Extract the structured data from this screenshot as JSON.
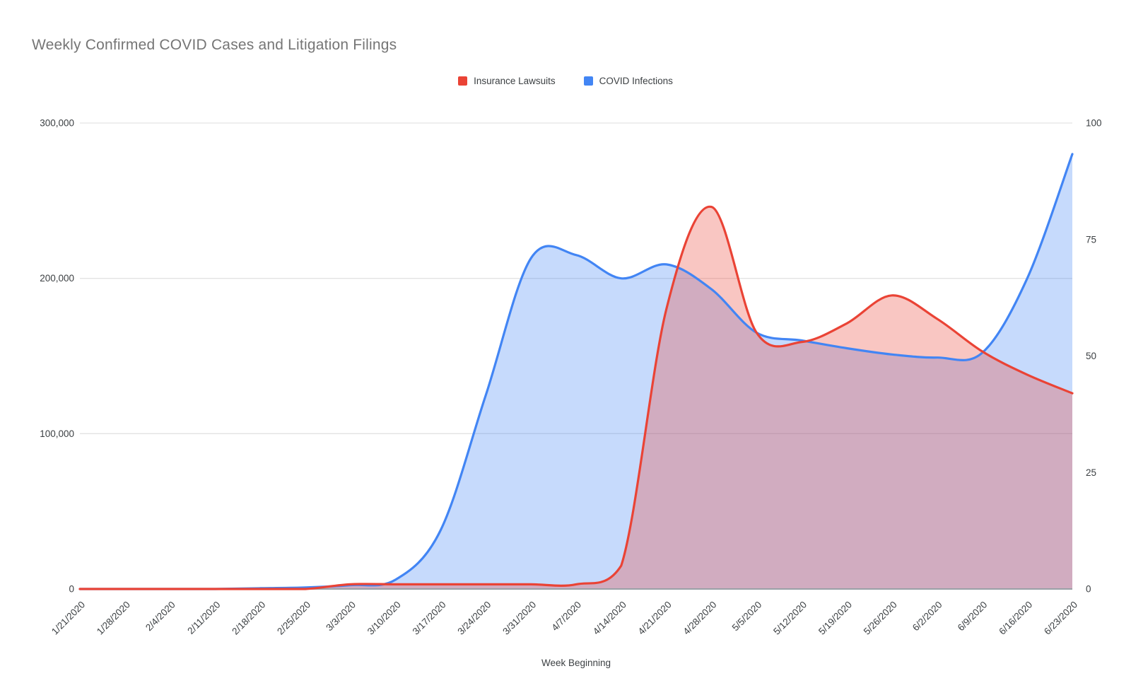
{
  "title": "Weekly Confirmed COVID Cases and Litigation Filings",
  "legend": [
    {
      "label": "Insurance Lawsuits",
      "color": "#EA4335"
    },
    {
      "label": "COVID Infections",
      "color": "#4285F4"
    }
  ],
  "x_axis": {
    "title": "Week Beginning"
  },
  "left_axis": {
    "tick_labels": [
      "0",
      "100,000",
      "200,000",
      "300,000"
    ],
    "tick_values": [
      0,
      100000,
      200000,
      300000
    ],
    "min": 0,
    "max": 300000
  },
  "right_axis": {
    "tick_labels": [
      "0",
      "25",
      "50",
      "75",
      "100"
    ],
    "tick_values": [
      0,
      25,
      50,
      75,
      100
    ],
    "min": 0,
    "max": 100
  },
  "chart_data": {
    "type": "area",
    "smooth": true,
    "grid": "horizontal",
    "legend_position": "top",
    "title": "Weekly Confirmed COVID Cases and Litigation Filings",
    "xlabel": "Week Beginning",
    "left_ylim": [
      0,
      300000
    ],
    "right_ylim": [
      0,
      100
    ],
    "categories": [
      "1/21/2020",
      "1/28/2020",
      "2/4/2020",
      "2/11/2020",
      "2/18/2020",
      "2/25/2020",
      "3/3/2020",
      "3/10/2020",
      "3/17/2020",
      "3/24/2020",
      "3/31/2020",
      "4/7/2020",
      "4/14/2020",
      "4/21/2020",
      "4/28/2020",
      "5/5/2020",
      "5/12/2020",
      "5/19/2020",
      "5/26/2020",
      "6/2/2020",
      "6/9/2020",
      "6/16/2020",
      "6/23/2020"
    ],
    "series": [
      {
        "name": "COVID Infections",
        "axis": "left",
        "color": "#4285F4",
        "values": [
          0,
          0,
          0,
          0,
          500,
          1000,
          2500,
          6000,
          38000,
          125000,
          213000,
          215000,
          200000,
          209000,
          193000,
          165000,
          160000,
          155000,
          151000,
          149000,
          152000,
          200000,
          280000
        ]
      },
      {
        "name": "Insurance Lawsuits",
        "axis": "right",
        "color": "#EA4335",
        "values": [
          0,
          0,
          0,
          0,
          0,
          0,
          1,
          1,
          1,
          1,
          1,
          1,
          5,
          60,
          82,
          55,
          53,
          57,
          63,
          58,
          51,
          46,
          42
        ]
      }
    ],
    "colors": {
      "grid_line": "#e3e3e3",
      "axis_baseline": "#9aa0a6",
      "tick_text": "#3c4043",
      "title_text": "#757575"
    }
  }
}
